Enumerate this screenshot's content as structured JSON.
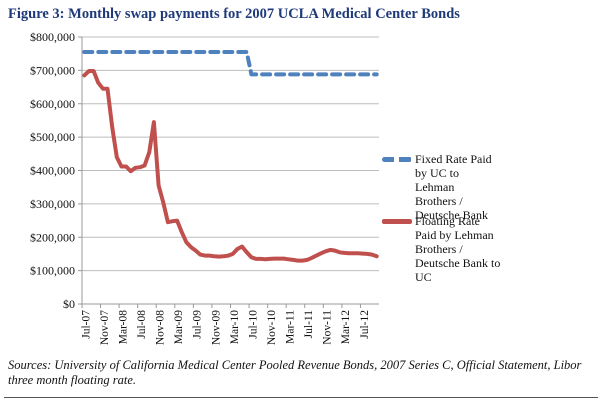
{
  "title": "Figure 3: Monthly swap payments for 2007 UCLA Medical Center Bonds",
  "source_note": "Sources: University of California Medical Center Pooled Revenue Bonds, 2007 Series C, Official Statement, Libor three month floating rate.",
  "chart_data": {
    "type": "line",
    "title": "Figure 3: Monthly swap payments for 2007 UCLA Medical Center Bonds",
    "xlabel": "",
    "ylabel": "",
    "ylim": [
      0,
      800000
    ],
    "yticks": [
      0,
      100000,
      200000,
      300000,
      400000,
      500000,
      600000,
      700000,
      800000
    ],
    "ytick_labels": [
      "$0",
      "$100,000",
      "$200,000",
      "$300,000",
      "$400,000",
      "$500,000",
      "$600,000",
      "$700,000",
      "$800,000"
    ],
    "xtick_labels": [
      "Jul-07",
      "Nov-07",
      "Mar-08",
      "Jul-08",
      "Nov-08",
      "Mar-09",
      "Jul-09",
      "Nov-09",
      "Mar-10",
      "Jul-10",
      "Nov-10",
      "Mar-11",
      "Jul-11",
      "Nov-11",
      "Mar-12",
      "Jul-12"
    ],
    "xtick_every_months": 4,
    "x": [
      "Jul-07",
      "Aug-07",
      "Sep-07",
      "Oct-07",
      "Nov-07",
      "Dec-07",
      "Jan-08",
      "Feb-08",
      "Mar-08",
      "Apr-08",
      "May-08",
      "Jun-08",
      "Jul-08",
      "Aug-08",
      "Sep-08",
      "Oct-08",
      "Nov-08",
      "Dec-08",
      "Jan-09",
      "Feb-09",
      "Mar-09",
      "Apr-09",
      "May-09",
      "Jun-09",
      "Jul-09",
      "Aug-09",
      "Sep-09",
      "Oct-09",
      "Nov-09",
      "Dec-09",
      "Jan-10",
      "Feb-10",
      "Mar-10",
      "Apr-10",
      "May-10",
      "Jun-10",
      "Jul-10",
      "Aug-10",
      "Sep-10",
      "Oct-10",
      "Nov-10",
      "Dec-10",
      "Jan-11",
      "Feb-11",
      "Mar-11",
      "Apr-11",
      "May-11",
      "Jun-11",
      "Jul-11",
      "Aug-11",
      "Sep-11",
      "Oct-11",
      "Nov-11",
      "Dec-11",
      "Jan-12",
      "Feb-12",
      "Mar-12",
      "Apr-12",
      "May-12",
      "Jun-12",
      "Jul-12",
      "Aug-12",
      "Sep-12",
      "Oct-12"
    ],
    "grid": true,
    "legend_position": "right",
    "series": [
      {
        "name": "Fixed Rate Paid by UC to Lehman Brothers / Deutsche Bank",
        "color": "#4f81bd",
        "style": "dashed",
        "values": [
          755000,
          755000,
          755000,
          755000,
          755000,
          755000,
          755000,
          755000,
          755000,
          755000,
          755000,
          755000,
          755000,
          755000,
          755000,
          755000,
          755000,
          755000,
          755000,
          755000,
          755000,
          755000,
          755000,
          755000,
          755000,
          755000,
          755000,
          755000,
          755000,
          755000,
          755000,
          755000,
          755000,
          755000,
          755000,
          755000,
          688000,
          688000,
          688000,
          688000,
          688000,
          688000,
          688000,
          688000,
          688000,
          688000,
          688000,
          688000,
          688000,
          688000,
          688000,
          688000,
          688000,
          688000,
          688000,
          688000,
          688000,
          688000,
          688000,
          688000,
          688000,
          688000,
          688000,
          688000
        ]
      },
      {
        "name": "Floating Rate Paid by  Lehman Brothers / Deutsche Bank to UC",
        "color": "#c0504d",
        "style": "solid",
        "values": [
          685000,
          698000,
          698000,
          663000,
          645000,
          645000,
          530000,
          440000,
          412000,
          412000,
          398000,
          408000,
          410000,
          415000,
          455000,
          545000,
          355000,
          305000,
          245000,
          248000,
          250000,
          215000,
          185000,
          170000,
          160000,
          148000,
          145000,
          145000,
          143000,
          142000,
          143000,
          145000,
          150000,
          165000,
          172000,
          155000,
          140000,
          135000,
          135000,
          134000,
          135000,
          136000,
          136000,
          136000,
          134000,
          132000,
          130000,
          130000,
          132000,
          138000,
          145000,
          152000,
          158000,
          162000,
          160000,
          155000,
          153000,
          152000,
          152000,
          152000,
          151000,
          150000,
          148000,
          143000
        ]
      }
    ]
  },
  "legend": [
    {
      "label": "Fixed Rate Paid\nby UC to\nLehman\nBrothers /\nDeutsche Bank",
      "color": "#4f81bd"
    },
    {
      "label": "Floating Rate\nPaid by  Lehman\nBrothers /\nDeutsche Bank to\nUC",
      "color": "#c0504d"
    }
  ]
}
